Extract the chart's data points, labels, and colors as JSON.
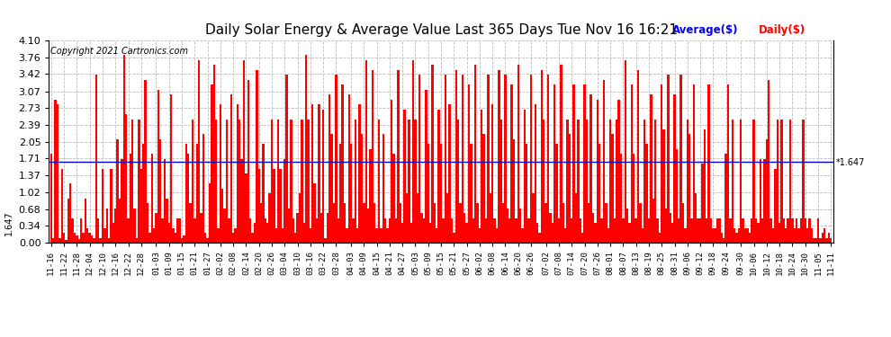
{
  "title": "Daily Solar Energy & Average Value Last 365 Days Tue Nov 16 16:21",
  "copyright": "Copyright 2021 Cartronics.com",
  "average_label": "Average($)",
  "daily_label": "Daily($)",
  "average_value": 1.647,
  "ylim": [
    0.0,
    4.1
  ],
  "yticks": [
    0.0,
    0.34,
    0.68,
    1.02,
    1.37,
    1.71,
    2.05,
    2.39,
    2.73,
    3.07,
    3.42,
    3.76,
    4.1
  ],
  "bar_color": "#ff0000",
  "average_line_color": "#0000cc",
  "background_color": "#ffffff",
  "grid_color": "#bbbbbb",
  "title_color": "#000000",
  "copyright_color": "#000000",
  "avg_label_color": "#0000ff",
  "daily_label_color": "#ff0000",
  "x_labels": [
    "11-16",
    "11-22",
    "11-28",
    "12-04",
    "12-10",
    "12-16",
    "12-22",
    "12-28",
    "01-03",
    "01-09",
    "01-15",
    "01-21",
    "01-27",
    "02-02",
    "02-08",
    "02-14",
    "02-20",
    "02-26",
    "03-04",
    "03-10",
    "03-16",
    "03-22",
    "03-28",
    "04-03",
    "04-09",
    "04-15",
    "04-21",
    "04-27",
    "05-03",
    "05-09",
    "05-15",
    "05-21",
    "05-27",
    "06-02",
    "06-08",
    "06-14",
    "06-20",
    "06-26",
    "07-02",
    "07-08",
    "07-14",
    "07-20",
    "07-26",
    "08-01",
    "08-07",
    "08-13",
    "08-19",
    "08-25",
    "08-31",
    "09-06",
    "09-12",
    "09-18",
    "09-24",
    "09-30",
    "10-06",
    "10-12",
    "10-18",
    "10-24",
    "10-30",
    "11-05",
    "11-11"
  ],
  "daily_values": [
    1.8,
    0.1,
    2.9,
    2.8,
    0.1,
    1.5,
    0.2,
    0.05,
    0.9,
    1.2,
    0.5,
    0.2,
    0.15,
    0.08,
    0.5,
    0.2,
    0.9,
    0.3,
    0.2,
    0.15,
    0.1,
    3.4,
    0.5,
    0.1,
    1.5,
    0.3,
    0.7,
    0.1,
    1.5,
    0.4,
    0.7,
    2.1,
    0.9,
    1.7,
    3.8,
    2.6,
    0.5,
    1.8,
    2.5,
    0.7,
    0.1,
    2.5,
    1.5,
    2.0,
    3.3,
    0.8,
    0.2,
    1.8,
    0.3,
    0.6,
    3.1,
    2.1,
    0.5,
    1.7,
    0.9,
    0.4,
    3.0,
    0.3,
    0.2,
    0.5,
    0.5,
    0.1,
    0.15,
    2.0,
    1.8,
    0.8,
    2.5,
    0.5,
    2.0,
    3.7,
    0.6,
    2.2,
    0.2,
    0.1,
    1.2,
    3.2,
    3.6,
    2.5,
    0.3,
    2.8,
    1.1,
    0.7,
    2.5,
    0.5,
    3.0,
    0.2,
    0.3,
    2.8,
    2.5,
    1.7,
    3.7,
    1.4,
    3.3,
    0.5,
    0.2,
    0.4,
    3.5,
    1.5,
    0.8,
    2.0,
    0.5,
    0.4,
    1.0,
    2.5,
    1.5,
    0.3,
    2.5,
    1.5,
    0.3,
    1.7,
    3.4,
    0.7,
    2.5,
    0.5,
    0.2,
    0.6,
    1.0,
    2.5,
    0.4,
    3.8,
    2.5,
    0.3,
    2.8,
    1.2,
    0.5,
    2.8,
    0.6,
    2.7,
    0.1,
    0.6,
    3.0,
    2.2,
    0.8,
    3.4,
    0.5,
    2.0,
    3.2,
    0.8,
    0.3,
    3.0,
    2.0,
    0.5,
    2.5,
    0.3,
    2.8,
    2.2,
    0.8,
    3.7,
    0.7,
    1.9,
    3.5,
    0.8,
    0.3,
    2.5,
    0.3,
    2.2,
    0.5,
    0.3,
    0.5,
    2.9,
    1.8,
    0.5,
    3.5,
    0.8,
    0.4,
    2.7,
    1.0,
    2.5,
    0.4,
    3.7,
    2.5,
    1.0,
    3.4,
    0.6,
    0.5,
    3.1,
    2.0,
    0.4,
    3.6,
    0.8,
    0.3,
    2.7,
    2.0,
    0.5,
    3.4,
    1.0,
    2.8,
    0.5,
    0.2,
    3.5,
    2.5,
    0.8,
    3.4,
    0.6,
    0.4,
    3.2,
    2.0,
    0.5,
    3.6,
    0.8,
    0.3,
    2.7,
    2.2,
    0.5,
    3.4,
    1.0,
    2.8,
    0.5,
    0.3,
    3.5,
    2.5,
    0.8,
    3.4,
    0.7,
    0.5,
    3.2,
    2.1,
    0.5,
    3.6,
    0.7,
    0.3,
    2.7,
    2.0,
    0.5,
    3.4,
    1.0,
    2.8,
    0.4,
    0.2,
    3.5,
    2.5,
    0.8,
    3.4,
    0.6,
    0.4,
    3.2,
    2.0,
    0.5,
    3.6,
    0.8,
    0.3,
    2.5,
    2.2,
    0.5,
    3.2,
    1.0,
    2.5,
    0.5,
    0.2,
    3.2,
    2.5,
    0.8,
    3.0,
    0.6,
    0.4,
    2.9,
    2.0,
    0.5,
    3.3,
    0.8,
    0.3,
    2.5,
    2.2,
    0.5,
    2.5,
    2.9,
    1.8,
    0.5,
    3.7,
    0.7,
    0.4,
    3.2,
    1.8,
    0.5,
    3.5,
    0.8,
    0.3,
    2.5,
    2.0,
    0.5,
    3.0,
    0.9,
    2.5,
    0.5,
    0.2,
    3.2,
    2.3,
    0.7,
    3.4,
    0.6,
    0.4,
    3.0,
    1.9,
    0.5,
    3.4,
    0.8,
    0.3,
    2.5,
    2.2,
    0.5,
    3.2,
    1.0,
    0.5,
    0.5,
    1.6,
    2.3,
    0.5,
    3.2,
    0.5,
    0.3,
    0.3,
    0.5,
    0.5,
    0.2,
    0.1,
    1.8,
    3.2,
    0.5,
    2.5,
    0.3,
    0.2,
    0.3,
    2.5,
    0.5,
    0.3,
    0.3,
    0.2,
    0.5,
    2.5,
    0.5,
    0.4,
    1.7,
    0.5,
    1.7,
    2.1,
    3.3,
    0.5,
    0.3,
    1.5,
    2.5,
    0.4,
    2.5,
    0.5,
    0.3,
    0.5,
    2.5,
    0.5,
    0.3,
    0.5,
    0.3,
    0.5,
    2.5,
    0.5,
    0.3,
    0.5,
    0.3,
    0.1,
    0.1,
    0.5,
    0.1,
    0.2,
    0.3,
    0.1,
    0.2,
    0.1
  ]
}
